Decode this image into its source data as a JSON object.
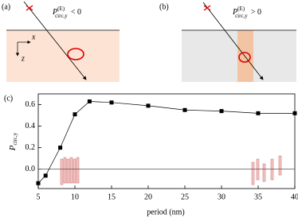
{
  "panels": [
    {
      "label": "(a)",
      "axis_x": "x",
      "axis_z": "z",
      "annotation": {
        "symbol": "P",
        "subscript": "circ,y",
        "superscript": "(E)",
        "relation": "< 0"
      }
    },
    {
      "label": "(b)",
      "annotation": {
        "symbol": "P",
        "subscript": "circ,y",
        "superscript": "(E)",
        "relation": "> 0"
      }
    }
  ],
  "chart_data": {
    "type": "line",
    "panel_label": "(c)",
    "xlabel": "period (nm)",
    "ylabel": {
      "symbol": "P",
      "subscript": "circ,y"
    },
    "x": [
      5,
      6,
      8,
      10,
      12,
      15,
      20,
      25,
      30,
      35,
      40
    ],
    "series": [
      {
        "color": "#000000",
        "values": [
          -0.13,
          -0.06,
          0.2,
          0.51,
          0.63,
          0.62,
          0.59,
          0.55,
          0.54,
          0.52,
          0.52
        ]
      }
    ],
    "xlim": [
      5,
      40
    ],
    "xticks": [
      5,
      10,
      15,
      20,
      25,
      30,
      35,
      40
    ],
    "ylim": [
      -0.18,
      0.7
    ],
    "yticks": [
      {
        "value": 0,
        "label": "0.0"
      },
      0.2,
      0.4,
      0.6
    ],
    "zero_line": true
  }
}
